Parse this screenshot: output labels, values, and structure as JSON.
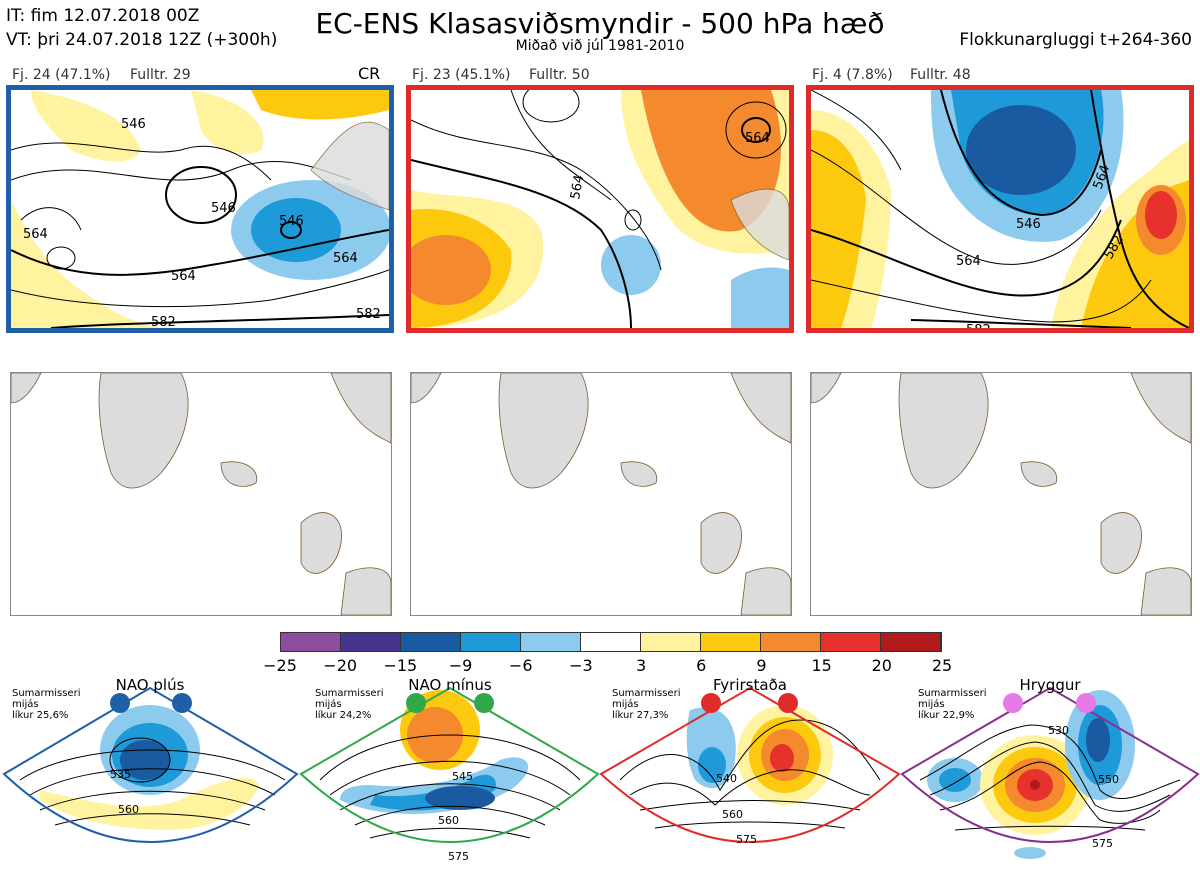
{
  "header": {
    "it_line": "IT: fim 12.07.2018 00Z",
    "vt_line": "VT: þri 24.07.2018 12Z  (+300h)",
    "title": "EC-ENS Klasasviðsmyndir - 500 hPa hæð",
    "subtitle": "Miðað við júl 1981-2010",
    "window": "Flokkunargluggi t+264-360"
  },
  "clusters": [
    {
      "caption": "Fj. 24 (47.1%)",
      "representative": "Fulltr. 29",
      "tag": "CR",
      "border_color": "#1f5fa8",
      "contour_labels": [
        "546",
        "546",
        "546",
        "564",
        "564",
        "564",
        "582",
        "582"
      ]
    },
    {
      "caption": "Fj. 23 (45.1%)",
      "representative": "Fulltr. 50",
      "tag": "",
      "border_color": "#e02b2b",
      "contour_labels": [
        "564",
        "564"
      ]
    },
    {
      "caption": "Fj. 4 (7.8%)",
      "representative": "Fulltr. 48",
      "tag": "",
      "border_color": "#e02b2b",
      "contour_labels": [
        "546",
        "564",
        "564",
        "582",
        "582"
      ]
    }
  ],
  "colorbar": {
    "ticks": [
      "−25",
      "−20",
      "−15",
      "−9",
      "−6",
      "−3",
      "3",
      "6",
      "9",
      "15",
      "20",
      "25"
    ],
    "colors": [
      "#8e4c9e",
      "#47348f",
      "#1a5aa0",
      "#1f9ad8",
      "#8ccbee",
      "#ffffff",
      "#fff3a0",
      "#fdc90f",
      "#f4892e",
      "#e7312c",
      "#b01a1a"
    ]
  },
  "regimes": [
    {
      "name": "NAO plús",
      "info": "Sumarmisseri\nmijás\nlíkur 25,6%",
      "color": "#1f5fa8",
      "dot_color": "#1f5fa8",
      "contour_labels": [
        "535",
        "560"
      ]
    },
    {
      "name": "NAO mínus",
      "info": "Sumarmisseri\nmijás\nlíkur 24,2%",
      "color": "#2ea84a",
      "dot_color": "#2ea84a",
      "contour_labels": [
        "545",
        "560",
        "575"
      ]
    },
    {
      "name": "Fyrirstaða",
      "info": "Sumarmisseri\nmijás\nlíkur 27,3%",
      "color": "#e02b2b",
      "dot_color": "#e02b2b",
      "contour_labels": [
        "540",
        "560",
        "575"
      ]
    },
    {
      "name": "Hryggur",
      "info": "Sumarmisseri\nmijás\nlíkur 22,9%",
      "color": "#8a2e8f",
      "dot_color": "#e879e8",
      "contour_labels": [
        "530",
        "550",
        "575"
      ]
    }
  ]
}
